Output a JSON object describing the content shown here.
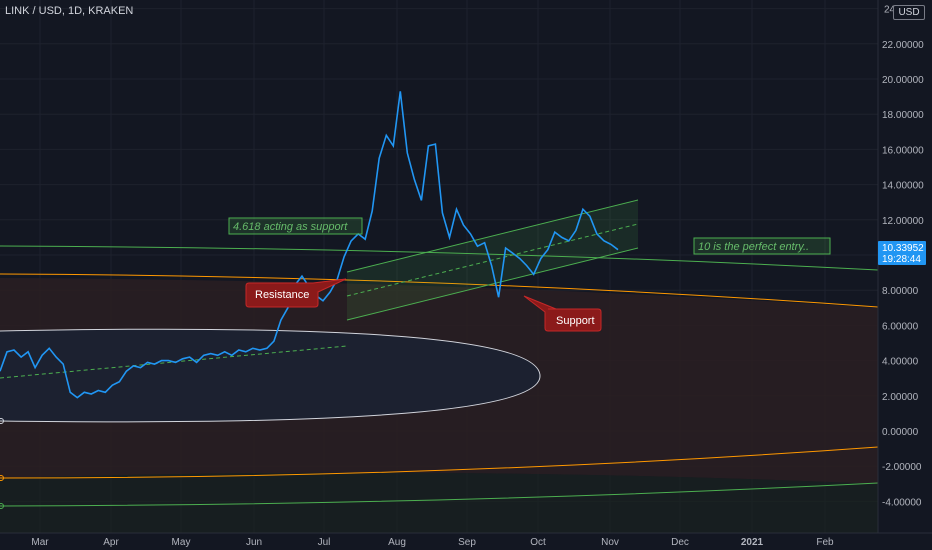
{
  "header": {
    "symbol": "LINK / USD, 1D, KRAKEN",
    "currency": "USD"
  },
  "price_box": {
    "price": "10.33952",
    "countdown": "19:28:44",
    "color": "#2196f3"
  },
  "colors": {
    "background": "#131722",
    "price_line": "#2196f3",
    "green": "#4caf50",
    "orange": "#ff9800",
    "white_curve": "#d1d4dc",
    "callout_red": "#8b1a1a"
  },
  "annotations": {
    "green_note_1": "4.618 acting as support",
    "green_note_2": "10 is the perfect entry..",
    "resistance": "Resistance",
    "support": "Support"
  },
  "chart_data": {
    "type": "line",
    "title": "",
    "xlabel": "",
    "ylabel": "",
    "ylim": [
      -5,
      24
    ],
    "grid": true,
    "x_ticks": [
      "Mar",
      "Apr",
      "May",
      "Jun",
      "Jul",
      "Aug",
      "Sep",
      "Oct",
      "Nov",
      "Dec",
      "2021",
      "Feb"
    ],
    "y_ticks": [
      "24.00000",
      "22.00000",
      "20.00000",
      "18.00000",
      "16.00000",
      "14.00000",
      "12.00000",
      "10.00000",
      "8.00000",
      "6.00000",
      "4.00000",
      "2.00000",
      "0.00000",
      "-2.00000",
      "-4.00000"
    ],
    "series": [
      {
        "values": [
          3.4,
          4.5,
          4.6,
          4.2,
          4.5,
          3.6,
          4.3,
          4.7,
          4.2,
          3.8,
          2.2,
          1.9,
          2.2,
          2.1,
          2.3,
          2.2,
          2.6,
          2.8,
          3.4,
          3.7,
          3.6,
          3.9,
          3.8,
          4.0,
          4.0,
          3.9,
          4.1,
          4.2,
          3.9,
          4.3,
          4.4,
          4.3,
          4.5,
          4.3,
          4.6,
          4.5,
          4.7,
          4.6,
          4.7,
          5.1,
          6.3,
          7.0,
          8.3,
          8.8,
          8.2,
          7.7,
          7.4,
          7.9,
          8.6,
          9.9,
          10.8,
          11.2,
          10.9,
          12.5,
          15.5,
          16.8,
          16.2,
          19.3,
          15.8,
          14.3,
          13.1,
          16.2,
          16.3,
          12.4,
          11.0,
          12.6,
          11.7,
          11.2,
          10.5,
          10.7,
          9.4,
          7.6,
          10.4,
          10.1,
          9.8,
          9.4,
          8.9,
          9.8,
          10.3,
          11.3,
          11.0,
          10.8,
          11.4,
          12.6,
          12.2,
          11.2,
          10.8,
          10.6,
          10.3
        ]
      }
    ],
    "green_channel": {
      "description": "ascending channel drawn from early July to November"
    }
  }
}
